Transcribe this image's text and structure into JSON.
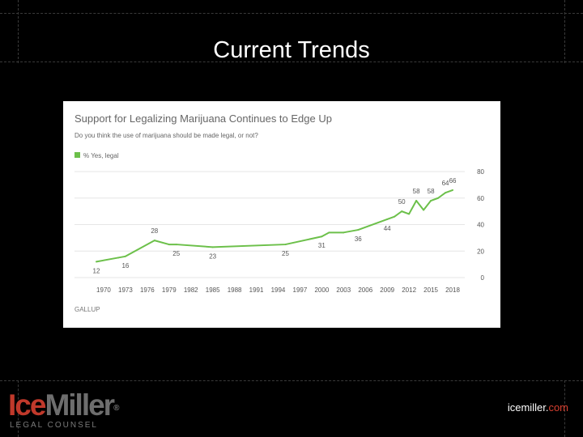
{
  "slide": {
    "title": "Current Trends",
    "site_name": "icemiller.",
    "site_tld": "com",
    "logo_ice": "Ice",
    "logo_miller": "Miller",
    "logo_registered": "®",
    "logo_subtitle": "LEGAL COUNSEL"
  },
  "colors": {
    "line": "#6cc04a",
    "site_tld": "#d94030",
    "logo_red": "#c0392b"
  },
  "chart_data": {
    "type": "line",
    "title": "Support for Legalizing Marijuana Continues to Edge Up",
    "subtitle": "Do you think the use of marijuana should be made legal, or not?",
    "source": "GALLUP",
    "legend": "% Yes, legal",
    "ylim": [
      0,
      80
    ],
    "yticks": [
      0,
      20,
      40,
      60,
      80
    ],
    "xlim": [
      1968,
      2019
    ],
    "xticks": [
      1970,
      1973,
      1976,
      1979,
      1982,
      1985,
      1988,
      1991,
      1994,
      1997,
      2000,
      2003,
      2006,
      2009,
      2012,
      2015,
      2018
    ],
    "series": [
      {
        "name": "% Yes, legal",
        "x": [
          1969,
          1972,
          1973,
          1977,
          1979,
          1980,
          1985,
          1995,
          2000,
          2001,
          2003,
          2005,
          2009,
          2010,
          2011,
          2012,
          2013,
          2014,
          2015,
          2016,
          2017,
          2018
        ],
        "values": [
          12,
          15,
          16,
          28,
          25,
          25,
          23,
          25,
          31,
          34,
          34,
          36,
          44,
          46,
          50,
          48,
          58,
          51,
          58,
          60,
          64,
          66
        ]
      }
    ],
    "annotations": [
      {
        "x": 1969,
        "y": 12,
        "label": "12"
      },
      {
        "x": 1973,
        "y": 16,
        "label": "16"
      },
      {
        "x": 1977,
        "y": 28,
        "label": "28"
      },
      {
        "x": 1980,
        "y": 25,
        "label": "25"
      },
      {
        "x": 1985,
        "y": 23,
        "label": "23"
      },
      {
        "x": 1995,
        "y": 25,
        "label": "25"
      },
      {
        "x": 2000,
        "y": 31,
        "label": "31"
      },
      {
        "x": 2005,
        "y": 36,
        "label": "36"
      },
      {
        "x": 2009,
        "y": 44,
        "label": "44"
      },
      {
        "x": 2011,
        "y": 50,
        "label": "50"
      },
      {
        "x": 2013,
        "y": 58,
        "label": "58"
      },
      {
        "x": 2015,
        "y": 58,
        "label": "58"
      },
      {
        "x": 2017,
        "y": 64,
        "label": "64"
      },
      {
        "x": 2018,
        "y": 66,
        "label": "66"
      }
    ]
  }
}
